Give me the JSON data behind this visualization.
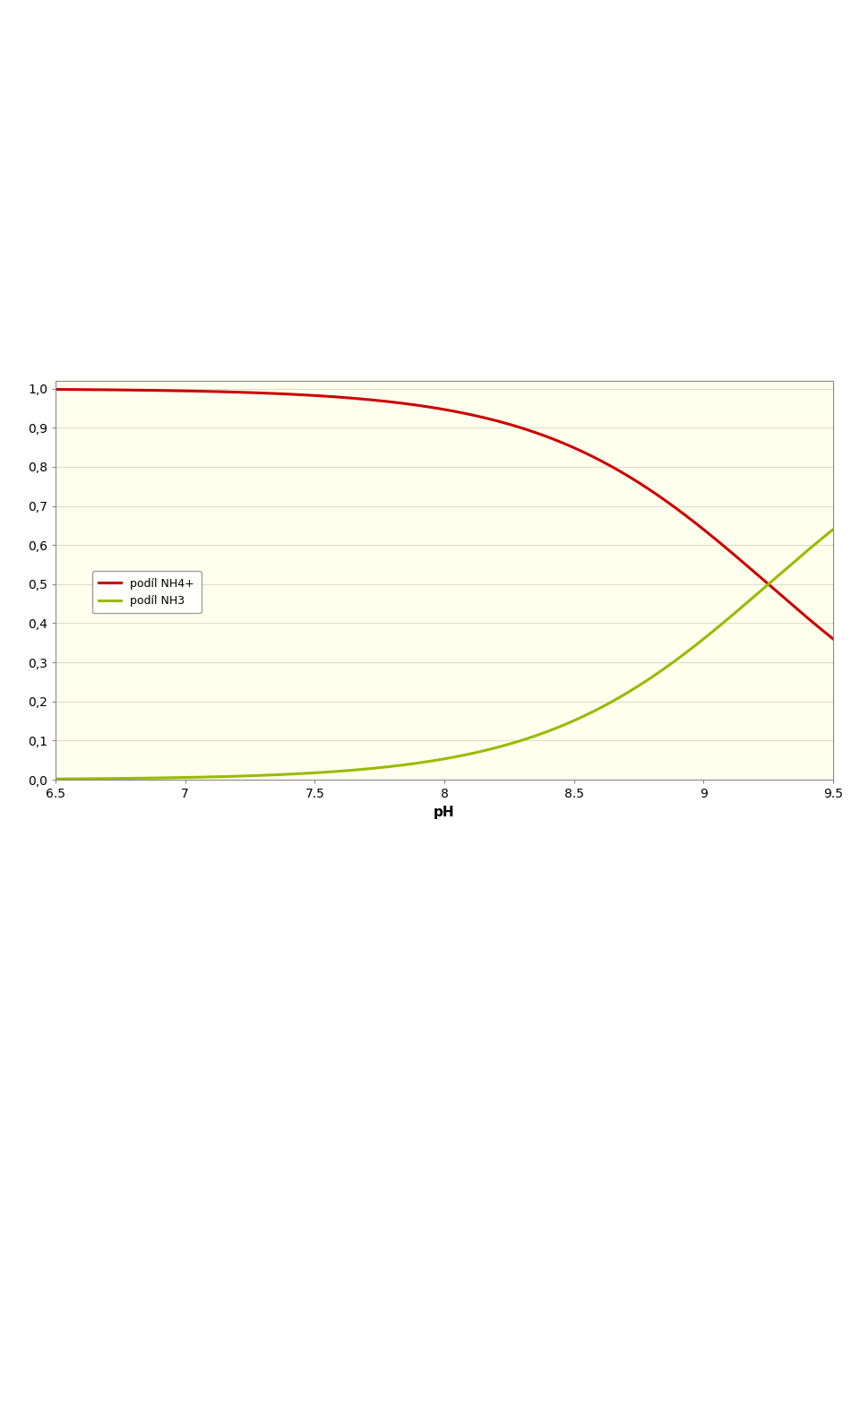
{
  "xlabel": "pH",
  "xlim": [
    6.5,
    9.5
  ],
  "ylim": [
    0.0,
    1.0
  ],
  "xticks": [
    6.5,
    7,
    7.5,
    8,
    8.5,
    9,
    9.5
  ],
  "yticks": [
    0.0,
    0.1,
    0.2,
    0.3,
    0.4,
    0.5,
    0.6,
    0.7,
    0.8,
    0.9,
    1.0
  ],
  "background_color": "#FFFFEE",
  "grid_color": "#DDDDCC",
  "line_nh4_color": "#CC0000",
  "line_nh3_color": "#99BB00",
  "legend_nh4": "podíl NH4+",
  "legend_nh3": "podíl NH3",
  "pKa": 9.25,
  "line_width": 2.2,
  "fig_width": 9.6,
  "fig_height": 15.89,
  "fig_dpi": 100
}
